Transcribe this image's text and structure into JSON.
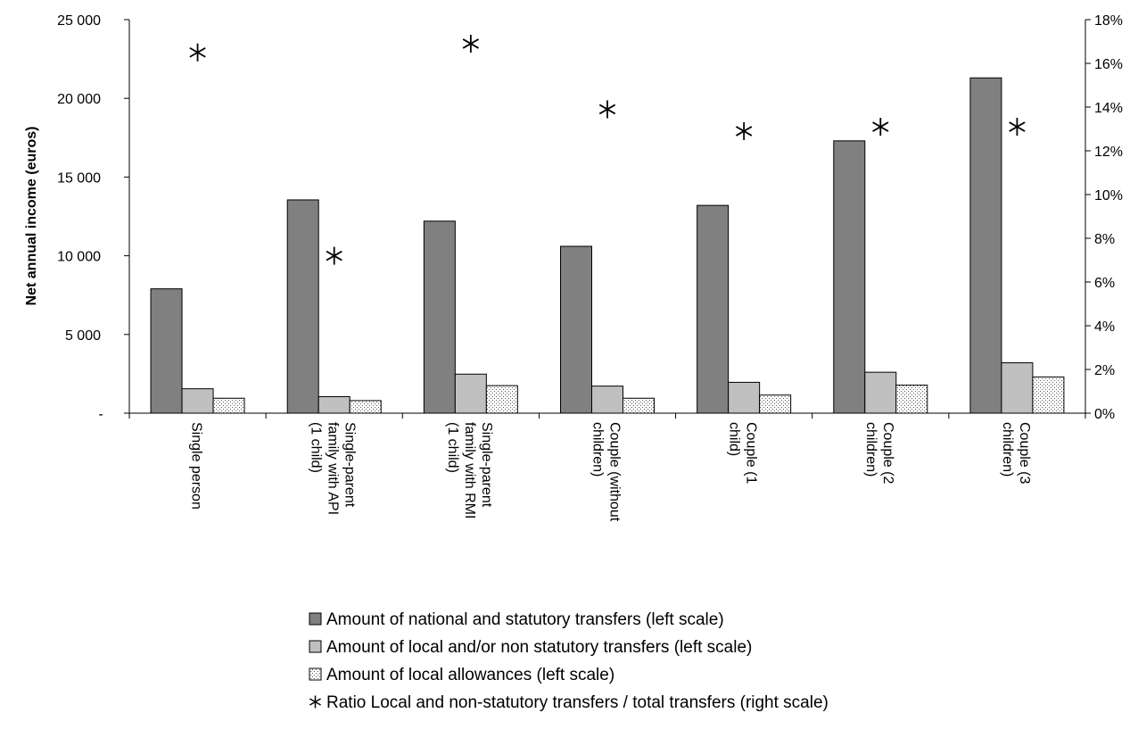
{
  "chart_data": {
    "type": "bar",
    "ylabel": "Net annual income (euros)",
    "ylim": [
      0,
      25000
    ],
    "y2lim": [
      0,
      0.18
    ],
    "yticks": [
      {
        "value": 0,
        "label": "-"
      },
      {
        "value": 5000,
        "label": "5 000"
      },
      {
        "value": 10000,
        "label": "10 000"
      },
      {
        "value": 15000,
        "label": "15 000"
      },
      {
        "value": 20000,
        "label": "20 000"
      },
      {
        "value": 25000,
        "label": "25 000"
      }
    ],
    "y2ticks": [
      {
        "value": 0,
        "label": "0%"
      },
      {
        "value": 0.02,
        "label": "2%"
      },
      {
        "value": 0.04,
        "label": "4%"
      },
      {
        "value": 0.06,
        "label": "6%"
      },
      {
        "value": 0.08,
        "label": "8%"
      },
      {
        "value": 0.1,
        "label": "10%"
      },
      {
        "value": 0.12,
        "label": "12%"
      },
      {
        "value": 0.14,
        "label": "14%"
      },
      {
        "value": 0.16,
        "label": "16%"
      },
      {
        "value": 0.18,
        "label": "18%"
      }
    ],
    "categories": [
      [
        "Single person"
      ],
      [
        "Single-parent",
        "family with API",
        "(1 child)"
      ],
      [
        "Single-parent",
        "family with RMI",
        "(1 child)"
      ],
      [
        "Couple (without",
        "children)"
      ],
      [
        "Couple (1",
        "child)"
      ],
      [
        "Couple (2",
        "children)"
      ],
      [
        "Couple (3",
        "children)"
      ]
    ],
    "series": [
      {
        "name": "Amount of national and statutory transfers (left scale)",
        "kind": "bar",
        "fill": "#808080",
        "axis": "left",
        "values": [
          7900,
          13550,
          12200,
          10600,
          13200,
          17300,
          21300
        ]
      },
      {
        "name": "Amount of local and/or non statutory transfers (left scale)",
        "kind": "bar",
        "fill": "#c0c0c0",
        "axis": "left",
        "values": [
          1550,
          1050,
          2480,
          1720,
          1960,
          2600,
          3200
        ]
      },
      {
        "name": "Amount of local allowances (left scale)",
        "kind": "bar",
        "fill": "dots",
        "axis": "left",
        "values": [
          950,
          800,
          1750,
          950,
          1150,
          1780,
          2300
        ]
      },
      {
        "name": "Ratio Local and non-statutory transfers / total transfers (right scale)",
        "kind": "marker",
        "axis": "right",
        "values": [
          0.165,
          0.072,
          0.169,
          0.139,
          0.129,
          0.131,
          0.131
        ]
      }
    ],
    "legend_position": "bottom",
    "grid": false
  }
}
